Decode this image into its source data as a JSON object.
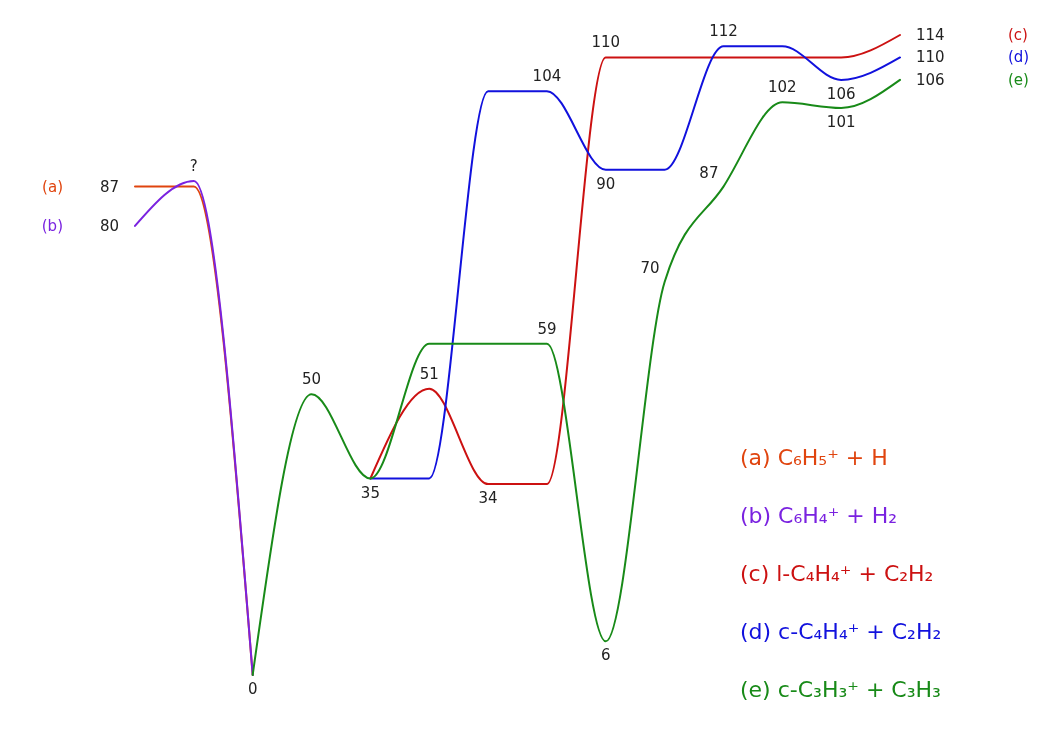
{
  "chart_data": {
    "type": "line",
    "categories": [
      null,
      null,
      null,
      null,
      null,
      null,
      null,
      null,
      null,
      null,
      null,
      null,
      null,
      null
    ],
    "series": [
      {
        "name": "(a) C₆H₅⁺ + H",
        "color": "#e0440e",
        "values": [
          87,
          87,
          0,
          null,
          null,
          null,
          null,
          null,
          null,
          null,
          null,
          null,
          null,
          null
        ],
        "value_labels": [
          "87",
          null,
          null,
          null,
          null,
          null,
          null,
          null,
          null,
          null,
          null,
          null,
          null,
          null
        ]
      },
      {
        "name": "(b) C₆H₄⁺ + H₂",
        "color": "#7a22e0",
        "values": [
          80,
          88,
          0,
          null,
          null,
          null,
          null,
          null,
          null,
          null,
          null,
          null,
          null,
          null
        ],
        "value_labels": [
          "80",
          "?",
          null,
          null,
          null,
          null,
          null,
          null,
          null,
          null,
          null,
          null,
          null,
          null
        ]
      },
      {
        "name": "(c) l-C₄H₄⁺ + C₂H₂",
        "color": "#cc1111",
        "values": [
          null,
          null,
          null,
          null,
          35,
          51,
          34,
          34,
          110,
          110,
          110,
          110,
          110,
          114
        ],
        "value_labels": [
          null,
          null,
          null,
          null,
          null,
          "51",
          "34",
          null,
          "110",
          null,
          null,
          null,
          null,
          "114"
        ]
      },
      {
        "name": "(d) c-C₄H₄⁺ + C₂H₂",
        "color": "#1111dd",
        "values": [
          null,
          null,
          null,
          null,
          35,
          35,
          104,
          104,
          90,
          90,
          112,
          112,
          106,
          110
        ],
        "value_labels": [
          null,
          null,
          null,
          null,
          null,
          null,
          null,
          "104",
          "90",
          null,
          "112",
          null,
          "106",
          "110"
        ]
      },
      {
        "name": "(e) c-C₃H₃⁺ + C₃H₃",
        "color": "#188a18",
        "values": [
          null,
          null,
          0,
          50,
          35,
          59,
          59,
          59,
          6,
          70,
          87,
          102,
          101,
          106
        ],
        "value_labels": [
          null,
          null,
          "0",
          "50",
          "35",
          null,
          null,
          "59",
          "6",
          "70",
          "87",
          "102",
          "101",
          "106"
        ]
      }
    ],
    "annotations": [
      "(a)",
      "(b)",
      "(c)",
      "(d)",
      "(e)"
    ],
    "legend": "bottom right",
    "tick_labels": false
  }
}
